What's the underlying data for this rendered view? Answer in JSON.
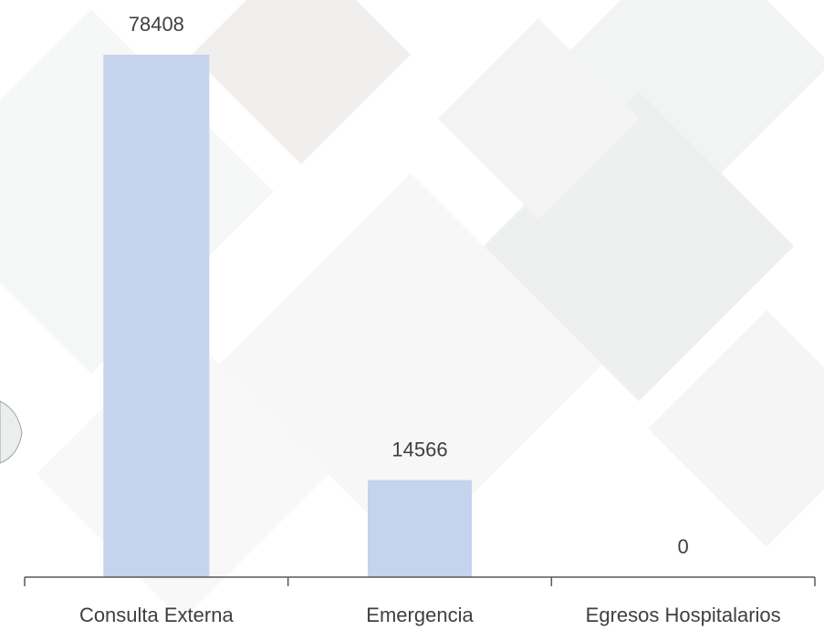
{
  "chart_data": {
    "type": "bar",
    "categories": [
      "Consulta Externa",
      "Emergencia",
      "Egresos Hospitalarios"
    ],
    "values": [
      78408,
      14566,
      0
    ],
    "title": "",
    "xlabel": "",
    "ylabel": "",
    "ylim": [
      0,
      78408
    ],
    "grid": false,
    "legend": "none",
    "data_labels": true,
    "bar_color": "#c5d3ec",
    "axis_color": "#595959",
    "label_color": "#3f3f3f"
  }
}
